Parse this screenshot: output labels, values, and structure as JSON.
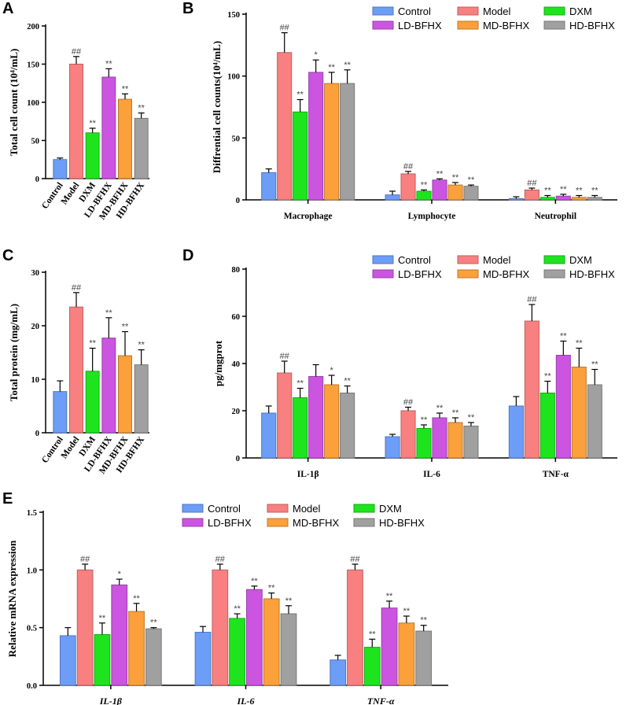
{
  "figure": {
    "series_names": [
      "Control",
      "Model",
      "DXM",
      "LD-BFHX",
      "MD-BFHX",
      "HD-BFHX"
    ],
    "colors": {
      "Control": "#6c9ef8",
      "Model": "#f98080",
      "DXM": "#1ee41e",
      "LD-BFHX": "#cb55e0",
      "MD-BFHX": "#fba03a",
      "HD-BFHX": "#a0a0a0"
    }
  },
  "chart_data": [
    {
      "id": "A",
      "panel_label": "A",
      "type": "bar",
      "title": "",
      "ylabel": "Total cell count (10⁴/mL)",
      "ylim": [
        0,
        200
      ],
      "yticks": [
        0,
        50,
        100,
        150,
        200
      ],
      "categories": [
        "Control",
        "Model",
        "DXM",
        "LD-BFHX",
        "MD-BFHX",
        "HD-BFHX"
      ],
      "values": [
        25,
        150,
        60,
        133,
        104,
        79
      ],
      "errors": [
        2,
        10,
        6,
        11,
        7,
        7
      ],
      "annotations": [
        "",
        "##",
        "**",
        "**",
        "**",
        "**"
      ],
      "legend": false
    },
    {
      "id": "B",
      "panel_label": "B",
      "type": "bar",
      "title": "",
      "ylabel": "Diffrential cell counts(10⁴/mL)",
      "ylim": [
        0,
        150
      ],
      "yticks": [
        0,
        50,
        100,
        150
      ],
      "categories": [
        "Macrophage",
        "Lymphocyte",
        "Neutrophil"
      ],
      "series": [
        {
          "name": "Control",
          "values": [
            22,
            4,
            1
          ],
          "errors": [
            3,
            3,
            1.5
          ],
          "annotations": [
            "",
            "",
            ""
          ]
        },
        {
          "name": "Model",
          "values": [
            119,
            21,
            8
          ],
          "errors": [
            16,
            2,
            1.5
          ],
          "annotations": [
            "##",
            "##",
            "##"
          ]
        },
        {
          "name": "DXM",
          "values": [
            71,
            7,
            2
          ],
          "errors": [
            10,
            1,
            1.5
          ],
          "annotations": [
            "**",
            "**",
            "**"
          ]
        },
        {
          "name": "LD-BFHX",
          "values": [
            103,
            16,
            3
          ],
          "errors": [
            10,
            1,
            1.5
          ],
          "annotations": [
            "*",
            "**",
            "**"
          ]
        },
        {
          "name": "MD-BFHX",
          "values": [
            94,
            12,
            2
          ],
          "errors": [
            9,
            2,
            1.5
          ],
          "annotations": [
            "**",
            "**",
            "**"
          ]
        },
        {
          "name": "HD-BFHX",
          "values": [
            94,
            11,
            2
          ],
          "errors": [
            11,
            1,
            1.5
          ],
          "annotations": [
            "**",
            "**",
            "**"
          ]
        }
      ],
      "legend": true
    },
    {
      "id": "C",
      "panel_label": "C",
      "type": "bar",
      "title": "",
      "ylabel": "Total protein (mg/mL)",
      "ylim": [
        0,
        30
      ],
      "yticks": [
        0,
        10,
        20,
        30
      ],
      "categories": [
        "Control",
        "Model",
        "DXM",
        "LD-BFHX",
        "MD-BFHX",
        "HD-BFHX"
      ],
      "values": [
        7.7,
        23.5,
        11.5,
        17.7,
        14.4,
        12.7
      ],
      "errors": [
        2,
        2.7,
        4.3,
        3.8,
        4.5,
        2.8
      ],
      "annotations": [
        "",
        "##",
        "**",
        "**",
        "**",
        "**"
      ],
      "legend": false
    },
    {
      "id": "D",
      "panel_label": "D",
      "type": "bar",
      "title": "",
      "ylabel": "pg/mgprot",
      "ylim": [
        0,
        80
      ],
      "yticks": [
        0,
        20,
        40,
        60,
        80
      ],
      "categories": [
        "IL-1β",
        "IL-6",
        "TNF-α"
      ],
      "series": [
        {
          "name": "Control",
          "values": [
            19,
            9,
            22
          ],
          "errors": [
            3,
            1,
            4
          ],
          "annotations": [
            "",
            "",
            ""
          ]
        },
        {
          "name": "Model",
          "values": [
            36,
            20,
            58
          ],
          "errors": [
            5,
            1.5,
            7
          ],
          "annotations": [
            "##",
            "##",
            "##"
          ]
        },
        {
          "name": "DXM",
          "values": [
            25.5,
            12.5,
            27.5
          ],
          "errors": [
            4,
            1.5,
            5
          ],
          "annotations": [
            "**",
            "**",
            "**"
          ]
        },
        {
          "name": "LD-BFHX",
          "values": [
            34.5,
            17,
            43.5
          ],
          "errors": [
            5,
            2,
            6
          ],
          "annotations": [
            "",
            "**",
            "**"
          ]
        },
        {
          "name": "MD-BFHX",
          "values": [
            31,
            15,
            38.5
          ],
          "errors": [
            4,
            2,
            8
          ],
          "annotations": [
            "*",
            "**",
            "**"
          ]
        },
        {
          "name": "HD-BFHX",
          "values": [
            27.5,
            13.5,
            31
          ],
          "errors": [
            3,
            1.5,
            6.5
          ],
          "annotations": [
            "**",
            "**",
            "**"
          ]
        }
      ],
      "legend": true
    },
    {
      "id": "E",
      "panel_label": "E",
      "type": "bar",
      "title": "",
      "ylabel": "Relative mRNA expression",
      "ylim": [
        0,
        1.5
      ],
      "yticks": [
        0.0,
        0.5,
        1.0,
        1.5
      ],
      "ytick_labels": [
        "0.0",
        "0.5",
        "1.0",
        "1.5"
      ],
      "categories": [
        "IL-1β",
        "IL-6",
        "TNF-α"
      ],
      "italic_categories": true,
      "series": [
        {
          "name": "Control",
          "values": [
            0.43,
            0.46,
            0.22
          ],
          "errors": [
            0.07,
            0.05,
            0.04
          ],
          "annotations": [
            "",
            "",
            ""
          ]
        },
        {
          "name": "Model",
          "values": [
            1.0,
            1.0,
            1.0
          ],
          "errors": [
            0.05,
            0.05,
            0.05
          ],
          "annotations": [
            "##",
            "##",
            "##"
          ]
        },
        {
          "name": "DXM",
          "values": [
            0.44,
            0.58,
            0.33
          ],
          "errors": [
            0.1,
            0.04,
            0.07
          ],
          "annotations": [
            "**",
            "**",
            "**"
          ]
        },
        {
          "name": "LD-BFHX",
          "values": [
            0.87,
            0.83,
            0.67
          ],
          "errors": [
            0.05,
            0.03,
            0.06
          ],
          "annotations": [
            "*",
            "**",
            "**"
          ]
        },
        {
          "name": "MD-BFHX",
          "values": [
            0.64,
            0.75,
            0.54
          ],
          "errors": [
            0.07,
            0.05,
            0.06
          ],
          "annotations": [
            "**",
            "**",
            "**"
          ]
        },
        {
          "name": "HD-BFHX",
          "values": [
            0.49,
            0.62,
            0.47
          ],
          "errors": [
            0.01,
            0.07,
            0.05
          ],
          "annotations": [
            "**",
            "**",
            "**"
          ]
        }
      ],
      "legend": true
    }
  ]
}
